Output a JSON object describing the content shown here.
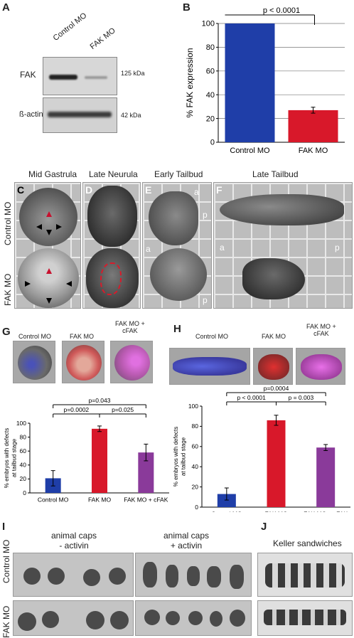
{
  "panels": {
    "A": "A",
    "B": "B",
    "G": "G",
    "H": "H",
    "I": "I",
    "J": "J",
    "C": "C",
    "D": "D",
    "E": "E",
    "F": "F"
  },
  "panelA": {
    "lanes": [
      "Control MO",
      "FAK MO"
    ],
    "rows": [
      "FAK",
      "ß-actin"
    ],
    "kda": [
      "125 kDa",
      "42 kDa"
    ]
  },
  "row2": {
    "stages": [
      "Mid Gastrula",
      "Late Neurula",
      "Early Tailbud",
      "Late  Tailbud"
    ],
    "rowlabels": [
      "Control MO",
      "FAK MO"
    ],
    "orient": {
      "a": "a",
      "p": "p"
    }
  },
  "panelG": {
    "labels": [
      "Control MO",
      "FAK MO",
      "FAK MO +\ncFAK"
    ]
  },
  "panelH": {
    "labels": [
      "Control MO",
      "FAK MO",
      "FAK MO +\ncFAK"
    ]
  },
  "panelI": {
    "headers": [
      "animal caps\n- activin",
      "animal caps\n+ activin"
    ],
    "rowlabels": [
      "Control MO",
      "FAK MO"
    ]
  },
  "panelJ": {
    "header": "Keller sandwiches"
  },
  "colors": {
    "control": "#1f3ea8",
    "fak": "#d8182a",
    "rescue": "#8a3a9a"
  },
  "chart_data": [
    {
      "id": "B",
      "type": "bar",
      "categories": [
        "Control MO",
        "FAK MO"
      ],
      "values": [
        100,
        27
      ],
      "errors": [
        0,
        2.5
      ],
      "ylabel": "% FAK expression",
      "ylim": [
        0,
        100
      ],
      "yticks": [
        0,
        20,
        40,
        60,
        80,
        100
      ],
      "significance": [
        {
          "pair": [
            0,
            1
          ],
          "label": "p < 0.0001"
        }
      ]
    },
    {
      "id": "G",
      "type": "bar",
      "categories": [
        "Control MO",
        "FAK MO",
        "FAK MO + cFAK"
      ],
      "values": [
        21,
        92,
        58
      ],
      "errors": [
        11,
        4,
        12
      ],
      "ylabel": "% embryos with defects\nat tailbud stage",
      "ylim": [
        0,
        100
      ],
      "yticks": [
        0,
        20,
        40,
        60,
        80,
        100
      ],
      "significance": [
        {
          "pair": [
            0,
            1
          ],
          "label": "p=0.0002"
        },
        {
          "pair": [
            1,
            2
          ],
          "label": "p=0.025"
        },
        {
          "pair": [
            0,
            2
          ],
          "label": "p=0.043"
        }
      ]
    },
    {
      "id": "H",
      "type": "bar",
      "categories": [
        "Control MO",
        "FAK MO",
        "FAK MO + cFAK"
      ],
      "values": [
        13,
        86,
        59
      ],
      "errors": [
        6,
        5,
        3
      ],
      "ylabel": "% embryos with defects\nat tailbud stage",
      "ylim": [
        0,
        100
      ],
      "yticks": [
        0,
        20,
        40,
        60,
        80,
        100
      ],
      "significance": [
        {
          "pair": [
            0,
            1
          ],
          "label": "p < 0.0001"
        },
        {
          "pair": [
            1,
            2
          ],
          "label": "p = 0.003"
        },
        {
          "pair": [
            0,
            2
          ],
          "label": "p=0.0004"
        }
      ]
    }
  ]
}
